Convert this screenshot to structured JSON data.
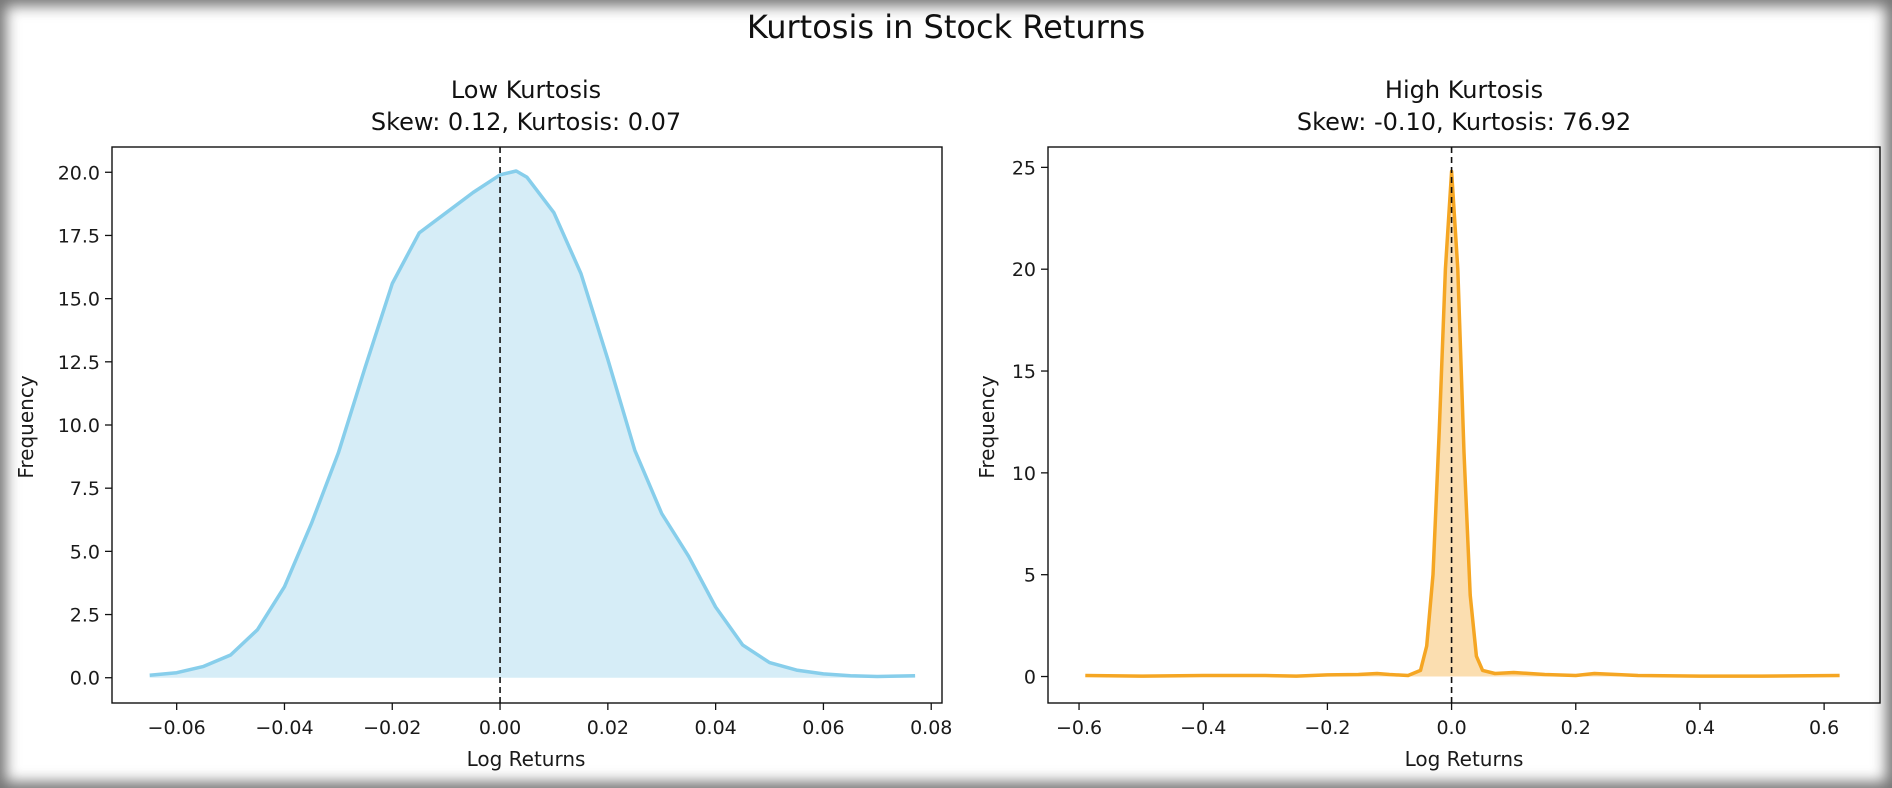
{
  "chart_data": {
    "title": "Kurtosis in Stock Returns",
    "panels": [
      {
        "type": "area",
        "title": "Low Kurtosis",
        "subtitle": "Skew: 0.12, Kurtosis: 0.07",
        "xlabel": "Log Returns",
        "ylabel": "Frequency",
        "xlim": [
          -0.072,
          0.082
        ],
        "ylim": [
          -1.0,
          21.0
        ],
        "xticks": [
          -0.06,
          -0.04,
          -0.02,
          0.0,
          0.02,
          0.04,
          0.06,
          0.08
        ],
        "xtick_labels": [
          "−0.06",
          "−0.04",
          "−0.02",
          "0.00",
          "0.02",
          "0.04",
          "0.06",
          "0.08"
        ],
        "yticks": [
          0.0,
          2.5,
          5.0,
          7.5,
          10.0,
          12.5,
          15.0,
          17.5,
          20.0
        ],
        "ytick_labels": [
          "0.0",
          "2.5",
          "5.0",
          "7.5",
          "10.0",
          "12.5",
          "15.0",
          "17.5",
          "20.0"
        ],
        "vline_x": 0.0,
        "line_color": "#87ceeb",
        "fill_color": "#d6edf7",
        "x": [
          -0.065,
          -0.06,
          -0.055,
          -0.05,
          -0.045,
          -0.04,
          -0.035,
          -0.03,
          -0.025,
          -0.02,
          -0.015,
          -0.01,
          -0.005,
          0.0,
          0.003,
          0.005,
          0.01,
          0.015,
          0.02,
          0.025,
          0.03,
          0.035,
          0.04,
          0.045,
          0.05,
          0.055,
          0.06,
          0.065,
          0.07,
          0.077
        ],
        "y": [
          0.1,
          0.2,
          0.45,
          0.9,
          1.9,
          3.6,
          6.1,
          8.9,
          12.3,
          15.6,
          17.6,
          18.4,
          19.2,
          19.9,
          20.05,
          19.8,
          18.4,
          16.0,
          12.6,
          9.0,
          6.5,
          4.8,
          2.8,
          1.3,
          0.6,
          0.3,
          0.15,
          0.08,
          0.05,
          0.08
        ]
      },
      {
        "type": "area",
        "title": "High Kurtosis",
        "subtitle": "Skew: -0.10, Kurtosis: 76.92",
        "xlabel": "Log Returns",
        "ylabel": "Frequency",
        "xlim": [
          -0.65,
          0.69
        ],
        "ylim": [
          -1.3,
          26.0
        ],
        "xticks": [
          -0.6,
          -0.4,
          -0.2,
          0.0,
          0.2,
          0.4,
          0.6
        ],
        "xtick_labels": [
          "−0.6",
          "−0.4",
          "−0.2",
          "0.0",
          "0.2",
          "0.4",
          "0.6"
        ],
        "yticks": [
          0,
          5,
          10,
          15,
          20,
          25
        ],
        "ytick_labels": [
          "0",
          "5",
          "10",
          "15",
          "20",
          "25"
        ],
        "vline_x": 0.0,
        "line_color": "#f5a623",
        "fill_color": "#fbdeb0",
        "x": [
          -0.59,
          -0.5,
          -0.4,
          -0.3,
          -0.25,
          -0.2,
          -0.15,
          -0.12,
          -0.1,
          -0.07,
          -0.05,
          -0.04,
          -0.03,
          -0.02,
          -0.01,
          0.0,
          0.01,
          0.02,
          0.03,
          0.04,
          0.05,
          0.07,
          0.1,
          0.15,
          0.2,
          0.23,
          0.3,
          0.4,
          0.5,
          0.625
        ],
        "y": [
          0.05,
          0.02,
          0.05,
          0.05,
          0.02,
          0.08,
          0.1,
          0.15,
          0.1,
          0.05,
          0.3,
          1.5,
          5.0,
          12.0,
          20.0,
          24.8,
          20.0,
          11.0,
          4.0,
          1.0,
          0.3,
          0.15,
          0.2,
          0.1,
          0.05,
          0.15,
          0.05,
          0.02,
          0.02,
          0.05
        ]
      }
    ]
  }
}
